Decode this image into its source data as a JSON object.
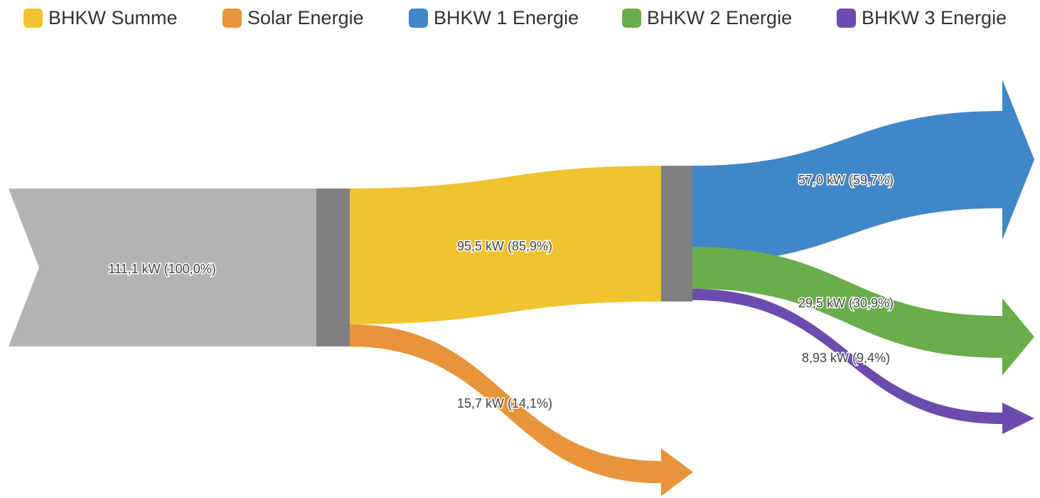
{
  "legend": {
    "items": [
      {
        "label": "BHKW Summe",
        "color": "#f0c330"
      },
      {
        "label": "Solar Energie",
        "color": "#e8943a"
      },
      {
        "label": "BHKW 1 Energie",
        "color": "#3f87c9"
      },
      {
        "label": "BHKW 2 Energie",
        "color": "#6aad4b"
      },
      {
        "label": "BHKW 3 Energie",
        "color": "#6b4cae"
      }
    ]
  },
  "chart_data": {
    "type": "sankey",
    "unit": "kW",
    "source": {
      "value": 111.1,
      "label": "111,1 kW  (100,0%)",
      "color": "#b3b3b3"
    },
    "node_color": "#808080",
    "flows": [
      {
        "name": "BHKW Summe",
        "value": 95.5,
        "percent": 85.9,
        "label": "95,5 kW  (85,9%)",
        "color": "#f0c330"
      },
      {
        "name": "Solar Energie",
        "value": 15.7,
        "percent": 14.1,
        "label": "15,7 kW  (14,1%)",
        "color": "#e8943a"
      },
      {
        "name": "BHKW 1 Energie",
        "value": 57.0,
        "percent": 59.7,
        "label": "57,0 kW  (59,7%)",
        "color": "#3f87c9"
      },
      {
        "name": "BHKW 2 Energie",
        "value": 29.5,
        "percent": 30.9,
        "label": "29,5 kW  (30,9%)",
        "color": "#6aad4b"
      },
      {
        "name": "BHKW 3 Energie",
        "value": 8.93,
        "percent": 9.4,
        "label": "8,93 kW  (9,4%)",
        "color": "#6b4cae"
      }
    ]
  }
}
